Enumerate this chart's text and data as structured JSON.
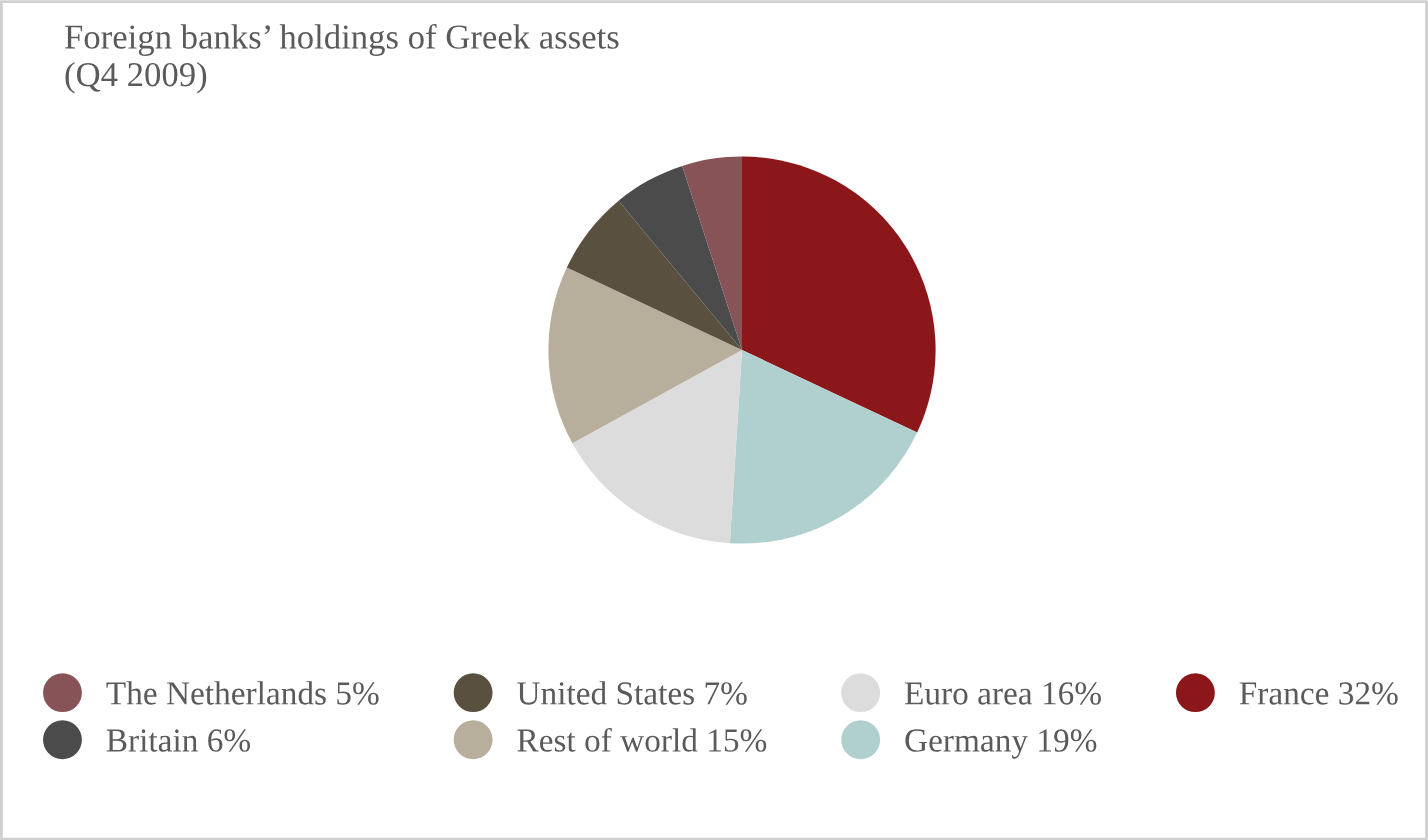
{
  "chart_data": {
    "type": "pie",
    "title": "Foreign banks’ holdings of Greek assets\n(Q4 2009)",
    "categories": [
      "France",
      "Germany",
      "Euro area",
      "Rest of world",
      "United States",
      "Britain",
      "The Netherlands"
    ],
    "values": [
      32,
      19,
      16,
      15,
      7,
      6,
      5
    ],
    "value_labels": [
      "32%",
      "19%",
      "16%",
      "15%",
      "7%",
      "6%",
      "5%"
    ],
    "colors": [
      "#8b171b",
      "#afd0cf",
      "#dcdcdc",
      "#b8ae9c",
      "#5a503f",
      "#4b4b4b",
      "#875356"
    ],
    "legend": "bottom"
  }
}
